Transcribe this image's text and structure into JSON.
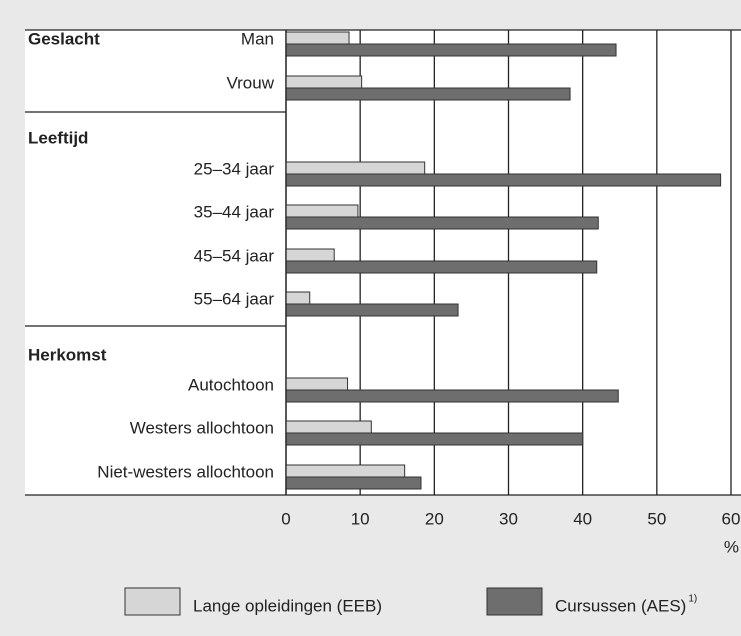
{
  "chart_data": {
    "type": "grouped-hbar",
    "groups": [
      {
        "label": "Geslacht",
        "categories": [
          "Man",
          "Vrouw"
        ]
      },
      {
        "label": "Leeftijd",
        "categories": [
          "25–34 jaar",
          "35–44 jaar",
          "45–54 jaar",
          "55–64 jaar"
        ]
      },
      {
        "label": "Herkomst",
        "categories": [
          "Autochtoon",
          "Westers allochtoon",
          "Niet-westers allochtoon"
        ]
      }
    ],
    "series": [
      {
        "name": "Lange opleidingen (EEB)",
        "color": "#d6d6d6",
        "values": [
          8.5,
          10.2,
          18.7,
          9.7,
          6.5,
          3.2,
          8.3,
          11.5,
          16
        ]
      },
      {
        "name": "Cursussen (AES)",
        "note": "1)",
        "color": "#6e6e6e",
        "values": [
          44.5,
          38.3,
          58.6,
          42.1,
          41.9,
          23.2,
          44.8,
          40,
          18.2
        ]
      }
    ],
    "xlim": [
      0,
      60
    ],
    "xticks": [
      0,
      10,
      20,
      30,
      40,
      50,
      60
    ],
    "xunit": "%",
    "grid": true
  }
}
